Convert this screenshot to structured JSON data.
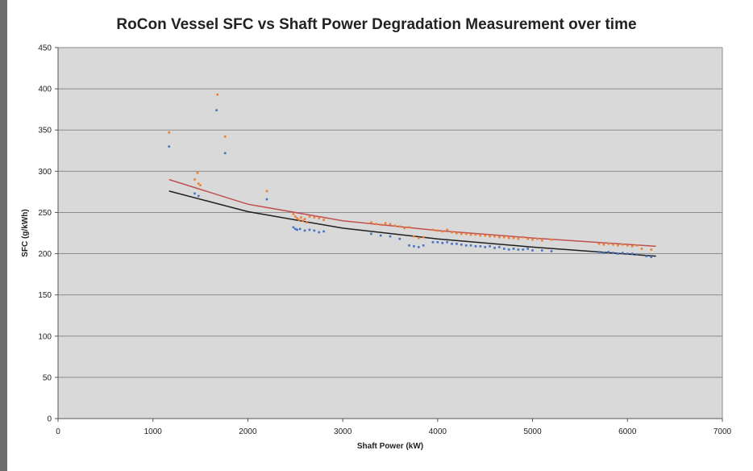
{
  "chart_data": {
    "type": "scatter",
    "title": "RoCon Vessel SFC vs Shaft Power Degradation Measurement over time",
    "xlabel": "Shaft Power (kW)",
    "ylabel": "SFC (g/kWh)",
    "xlim": [
      0,
      7000
    ],
    "ylim": [
      0,
      450
    ],
    "xticks": [
      0,
      1000,
      2000,
      3000,
      4000,
      5000,
      6000,
      7000
    ],
    "yticks": [
      0,
      50,
      100,
      150,
      200,
      250,
      300,
      350,
      400,
      450
    ],
    "grid": true,
    "legend": "none",
    "plot_background": "#d9d9d9",
    "series": [
      {
        "color": "#ed7d31",
        "marker": "point",
        "points": [
          [
            1170,
            347
          ],
          [
            1440,
            290
          ],
          [
            1470,
            298
          ],
          [
            1480,
            285
          ],
          [
            1500,
            283
          ],
          [
            1680,
            393
          ],
          [
            1760,
            342
          ],
          [
            2200,
            276
          ],
          [
            2480,
            248
          ],
          [
            2500,
            245
          ],
          [
            2520,
            243
          ],
          [
            2540,
            241
          ],
          [
            2560,
            244
          ],
          [
            2580,
            240
          ],
          [
            2600,
            242
          ],
          [
            2620,
            238
          ],
          [
            2650,
            245
          ],
          [
            2700,
            244
          ],
          [
            2750,
            243
          ],
          [
            2800,
            241
          ],
          [
            3300,
            238
          ],
          [
            3350,
            236
          ],
          [
            3400,
            235
          ],
          [
            3450,
            237
          ],
          [
            3500,
            236
          ],
          [
            3550,
            234
          ],
          [
            3600,
            233
          ],
          [
            3650,
            231
          ],
          [
            3700,
            232
          ],
          [
            3750,
            221
          ],
          [
            3800,
            219
          ],
          [
            3850,
            220
          ],
          [
            3950,
            229
          ],
          [
            4000,
            228
          ],
          [
            4050,
            227
          ],
          [
            4100,
            229
          ],
          [
            4150,
            226
          ],
          [
            4200,
            225
          ],
          [
            4250,
            224
          ],
          [
            4300,
            224
          ],
          [
            4350,
            223
          ],
          [
            4400,
            223
          ],
          [
            4450,
            222
          ],
          [
            4500,
            222
          ],
          [
            4550,
            221
          ],
          [
            4600,
            221
          ],
          [
            4650,
            220
          ],
          [
            4700,
            220
          ],
          [
            4750,
            219
          ],
          [
            4800,
            219
          ],
          [
            4850,
            218
          ],
          [
            4900,
            220
          ],
          [
            4950,
            218
          ],
          [
            5000,
            217
          ],
          [
            5050,
            218
          ],
          [
            5100,
            216
          ],
          [
            5200,
            217
          ],
          [
            5700,
            212
          ],
          [
            5750,
            211
          ],
          [
            5800,
            212
          ],
          [
            5850,
            211
          ],
          [
            5900,
            210
          ],
          [
            5950,
            211
          ],
          [
            6000,
            210
          ],
          [
            6050,
            209
          ],
          [
            6100,
            210
          ],
          [
            6150,
            206
          ],
          [
            6250,
            205
          ]
        ]
      },
      {
        "color": "#4472c4",
        "marker": "point",
        "points": [
          [
            1170,
            330
          ],
          [
            1440,
            273
          ],
          [
            1480,
            270
          ],
          [
            1670,
            374
          ],
          [
            1760,
            322
          ],
          [
            2200,
            266
          ],
          [
            2480,
            232
          ],
          [
            2500,
            230
          ],
          [
            2520,
            229
          ],
          [
            2550,
            230
          ],
          [
            2600,
            228
          ],
          [
            2650,
            229
          ],
          [
            2700,
            228
          ],
          [
            2750,
            226
          ],
          [
            2800,
            227
          ],
          [
            3300,
            224
          ],
          [
            3400,
            222
          ],
          [
            3500,
            221
          ],
          [
            3600,
            218
          ],
          [
            3700,
            210
          ],
          [
            3750,
            209
          ],
          [
            3800,
            208
          ],
          [
            3850,
            210
          ],
          [
            3950,
            214
          ],
          [
            4000,
            214
          ],
          [
            4050,
            213
          ],
          [
            4100,
            214
          ],
          [
            4150,
            212
          ],
          [
            4200,
            212
          ],
          [
            4250,
            211
          ],
          [
            4300,
            210
          ],
          [
            4350,
            210
          ],
          [
            4400,
            209
          ],
          [
            4450,
            209
          ],
          [
            4500,
            208
          ],
          [
            4550,
            209
          ],
          [
            4600,
            207
          ],
          [
            4650,
            208
          ],
          [
            4700,
            206
          ],
          [
            4750,
            205
          ],
          [
            4800,
            206
          ],
          [
            4850,
            205
          ],
          [
            4900,
            205
          ],
          [
            4950,
            206
          ],
          [
            5000,
            204
          ],
          [
            5100,
            204
          ],
          [
            5200,
            203
          ],
          [
            5700,
            202
          ],
          [
            5750,
            201
          ],
          [
            5800,
            202
          ],
          [
            5850,
            201
          ],
          [
            5900,
            200
          ],
          [
            5950,
            201
          ],
          [
            6000,
            200
          ],
          [
            6050,
            200
          ],
          [
            6100,
            199
          ],
          [
            6200,
            197
          ],
          [
            6250,
            196
          ]
        ]
      }
    ],
    "trendlines": [
      {
        "color": "#c0504d",
        "type": "power",
        "points": [
          [
            1170,
            290
          ],
          [
            2000,
            260
          ],
          [
            3000,
            240
          ],
          [
            4000,
            228
          ],
          [
            5000,
            219
          ],
          [
            6300,
            209
          ]
        ]
      },
      {
        "color": "#1f1f1f",
        "type": "power",
        "points": [
          [
            1170,
            276
          ],
          [
            2000,
            251
          ],
          [
            3000,
            231
          ],
          [
            4000,
            218
          ],
          [
            5000,
            208
          ],
          [
            6300,
            197
          ]
        ]
      }
    ]
  }
}
